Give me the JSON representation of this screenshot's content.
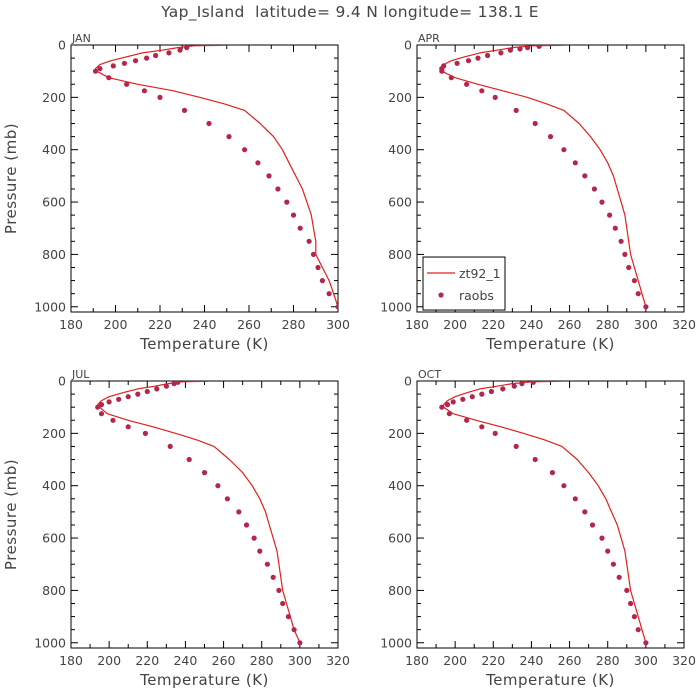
{
  "figure": {
    "title": "Yap_Island  latitude= 9.4 N longitude= 138.1 E"
  },
  "colors": {
    "model_line": "#e0201f",
    "obs_marker": "#b5264e",
    "axis": "#000000",
    "text": "#444444"
  },
  "chart_data": [
    {
      "type": "line",
      "panel_label": "JAN",
      "xlabel": "Temperature (K)",
      "ylabel": "Pressure (mb)",
      "xlim": [
        180,
        300
      ],
      "ylim": [
        1020,
        0
      ],
      "xticks": [
        180,
        200,
        220,
        240,
        260,
        280,
        300
      ],
      "yticks": [
        0,
        200,
        400,
        600,
        800,
        1000
      ],
      "grid": false,
      "series": [
        {
          "name": "zt92_1",
          "style": "line",
          "points": [
            [
              250,
              1
            ],
            [
              235,
              3
            ],
            [
              228,
              10
            ],
            [
              221,
              20
            ],
            [
              212,
              30
            ],
            [
              205,
              45
            ],
            [
              198,
              60
            ],
            [
              193,
              75
            ],
            [
              191,
              90
            ],
            [
              191.5,
              100
            ],
            [
              197,
              125
            ],
            [
              210,
              150
            ],
            [
              226,
              175
            ],
            [
              238,
              200
            ],
            [
              249,
              225
            ],
            [
              258,
              250
            ],
            [
              265,
              300
            ],
            [
              271,
              350
            ],
            [
              275,
              400
            ],
            [
              278,
              450
            ],
            [
              281,
              500
            ],
            [
              284,
              550
            ],
            [
              286,
              600
            ],
            [
              288,
              650
            ],
            [
              289,
              700
            ],
            [
              290,
              750
            ],
            [
              290,
              800
            ],
            [
              293,
              850
            ],
            [
              296,
              900
            ],
            [
              298,
              950
            ],
            [
              300,
              1000
            ]
          ]
        },
        {
          "name": "raobs",
          "style": "markers",
          "points": [
            [
              232,
              10
            ],
            [
              229,
              20
            ],
            [
              224,
              30
            ],
            [
              218,
              40
            ],
            [
              214,
              50
            ],
            [
              209,
              60
            ],
            [
              204,
              70
            ],
            [
              199,
              80
            ],
            [
              193,
              90
            ],
            [
              191,
              100
            ],
            [
              197,
              125
            ],
            [
              205,
              150
            ],
            [
              213,
              175
            ],
            [
              220,
              200
            ],
            [
              231,
              250
            ],
            [
              242,
              300
            ],
            [
              251,
              350
            ],
            [
              258,
              400
            ],
            [
              264,
              450
            ],
            [
              269,
              500
            ],
            [
              273,
              550
            ],
            [
              277,
              600
            ],
            [
              280,
              650
            ],
            [
              283,
              700
            ],
            [
              287,
              750
            ],
            [
              289,
              800
            ],
            [
              291,
              850
            ],
            [
              293,
              900
            ],
            [
              296,
              950
            ],
            [
              300,
              1000
            ]
          ]
        }
      ]
    },
    {
      "type": "line",
      "panel_label": "APR",
      "xlabel": "Temperature (K)",
      "ylabel": "",
      "xlim": [
        180,
        320
      ],
      "ylim": [
        1020,
        0
      ],
      "xticks": [
        180,
        200,
        220,
        240,
        260,
        280,
        300,
        320
      ],
      "yticks": [
        0,
        200,
        400,
        600,
        800,
        1000
      ],
      "grid": false,
      "legend": {
        "placement": "bottom-left",
        "entries": [
          "zt92_1",
          "raobs"
        ]
      },
      "series": [
        {
          "name": "zt92_1",
          "style": "line",
          "points": [
            [
              257,
              1
            ],
            [
              240,
              3
            ],
            [
              230,
              10
            ],
            [
              222,
              20
            ],
            [
              213,
              30
            ],
            [
              205,
              45
            ],
            [
              198,
              60
            ],
            [
              194,
              75
            ],
            [
              192,
              90
            ],
            [
              193,
              100
            ],
            [
              200,
              125
            ],
            [
              212,
              150
            ],
            [
              225,
              175
            ],
            [
              238,
              200
            ],
            [
              248,
              225
            ],
            [
              257,
              250
            ],
            [
              265,
              300
            ],
            [
              271,
              350
            ],
            [
              276,
              400
            ],
            [
              280,
              450
            ],
            [
              283,
              500
            ],
            [
              285,
              550
            ],
            [
              287,
              600
            ],
            [
              289,
              650
            ],
            [
              290,
              700
            ],
            [
              291,
              750
            ],
            [
              292,
              800
            ],
            [
              294,
              850
            ],
            [
              296,
              900
            ],
            [
              298,
              950
            ],
            [
              300,
              1000
            ]
          ]
        },
        {
          "name": "raobs",
          "style": "markers",
          "points": [
            [
              244,
              5
            ],
            [
              238,
              10
            ],
            [
              234,
              15
            ],
            [
              229,
              20
            ],
            [
              224,
              30
            ],
            [
              217,
              40
            ],
            [
              212,
              50
            ],
            [
              207,
              60
            ],
            [
              201,
              70
            ],
            [
              194,
              80
            ],
            [
              193,
              90
            ],
            [
              193,
              100
            ],
            [
              198,
              125
            ],
            [
              206,
              150
            ],
            [
              214,
              175
            ],
            [
              221,
              200
            ],
            [
              232,
              250
            ],
            [
              242,
              300
            ],
            [
              250,
              350
            ],
            [
              257,
              400
            ],
            [
              263,
              450
            ],
            [
              268,
              500
            ],
            [
              273,
              550
            ],
            [
              277,
              600
            ],
            [
              281,
              650
            ],
            [
              284,
              700
            ],
            [
              287,
              750
            ],
            [
              289,
              800
            ],
            [
              291,
              850
            ],
            [
              294,
              900
            ],
            [
              296,
              950
            ],
            [
              300,
              1000
            ]
          ]
        }
      ]
    },
    {
      "type": "line",
      "panel_label": "JUL",
      "xlabel": "Temperature (K)",
      "ylabel": "Pressure (mb)",
      "xlim": [
        180,
        320
      ],
      "ylim": [
        1020,
        0
      ],
      "xticks": [
        180,
        200,
        220,
        240,
        260,
        280,
        300,
        320
      ],
      "yticks": [
        0,
        200,
        400,
        600,
        800,
        1000
      ],
      "grid": false,
      "series": [
        {
          "name": "zt92_1",
          "style": "line",
          "points": [
            [
              252,
              1
            ],
            [
              238,
              3
            ],
            [
              231,
              10
            ],
            [
              224,
              20
            ],
            [
              215,
              30
            ],
            [
              207,
              45
            ],
            [
              200,
              60
            ],
            [
              196,
              75
            ],
            [
              194,
              90
            ],
            [
              195,
              100
            ],
            [
              199,
              125
            ],
            [
              210,
              150
            ],
            [
              223,
              175
            ],
            [
              235,
              200
            ],
            [
              246,
              225
            ],
            [
              255,
              250
            ],
            [
              263,
              300
            ],
            [
              270,
              350
            ],
            [
              275,
              400
            ],
            [
              279,
              450
            ],
            [
              282,
              500
            ],
            [
              284,
              550
            ],
            [
              286,
              600
            ],
            [
              288,
              650
            ],
            [
              289,
              700
            ],
            [
              290,
              750
            ],
            [
              291,
              800
            ],
            [
              293,
              850
            ],
            [
              295,
              900
            ],
            [
              297,
              950
            ],
            [
              300,
              1000
            ]
          ]
        },
        {
          "name": "raobs",
          "style": "markers",
          "points": [
            [
              236,
              5
            ],
            [
              234,
              10
            ],
            [
              230,
              20
            ],
            [
              225,
              30
            ],
            [
              220,
              40
            ],
            [
              215,
              50
            ],
            [
              210,
              60
            ],
            [
              205,
              70
            ],
            [
              200,
              80
            ],
            [
              196,
              90
            ],
            [
              194,
              100
            ],
            [
              196,
              125
            ],
            [
              202,
              150
            ],
            [
              210,
              175
            ],
            [
              219,
              200
            ],
            [
              232,
              250
            ],
            [
              242,
              300
            ],
            [
              250,
              350
            ],
            [
              257,
              400
            ],
            [
              262,
              450
            ],
            [
              268,
              500
            ],
            [
              272,
              550
            ],
            [
              276,
              600
            ],
            [
              279,
              650
            ],
            [
              283,
              700
            ],
            [
              286,
              750
            ],
            [
              289,
              800
            ],
            [
              291,
              850
            ],
            [
              294,
              900
            ],
            [
              297,
              950
            ],
            [
              300,
              1000
            ]
          ]
        }
      ]
    },
    {
      "type": "line",
      "panel_label": "OCT",
      "xlabel": "Temperature (K)",
      "ylabel": "",
      "xlim": [
        180,
        320
      ],
      "ylim": [
        1020,
        0
      ],
      "xticks": [
        180,
        200,
        220,
        240,
        260,
        280,
        300,
        320
      ],
      "yticks": [
        0,
        200,
        400,
        600,
        800,
        1000
      ],
      "grid": false,
      "series": [
        {
          "name": "zt92_1",
          "style": "line",
          "points": [
            [
              256,
              1
            ],
            [
              240,
              3
            ],
            [
              230,
              10
            ],
            [
              222,
              20
            ],
            [
              213,
              30
            ],
            [
              206,
              45
            ],
            [
              200,
              60
            ],
            [
              196,
              75
            ],
            [
              194,
              90
            ],
            [
              194,
              100
            ],
            [
              199,
              125
            ],
            [
              211,
              150
            ],
            [
              224,
              175
            ],
            [
              236,
              200
            ],
            [
              247,
              225
            ],
            [
              256,
              250
            ],
            [
              264,
              300
            ],
            [
              270,
              350
            ],
            [
              275,
              400
            ],
            [
              279,
              450
            ],
            [
              282,
              500
            ],
            [
              285,
              550
            ],
            [
              287,
              600
            ],
            [
              289,
              650
            ],
            [
              290,
              700
            ],
            [
              291,
              750
            ],
            [
              292,
              800
            ],
            [
              294,
              850
            ],
            [
              296,
              900
            ],
            [
              298,
              950
            ],
            [
              300,
              1000
            ]
          ]
        },
        {
          "name": "raobs",
          "style": "markers",
          "points": [
            [
              241,
              5
            ],
            [
              235,
              10
            ],
            [
              231,
              20
            ],
            [
              225,
              30
            ],
            [
              219,
              40
            ],
            [
              214,
              50
            ],
            [
              209,
              60
            ],
            [
              204,
              70
            ],
            [
              199,
              80
            ],
            [
              196,
              90
            ],
            [
              193,
              100
            ],
            [
              197,
              125
            ],
            [
              206,
              150
            ],
            [
              214,
              175
            ],
            [
              221,
              200
            ],
            [
              232,
              250
            ],
            [
              242,
              300
            ],
            [
              251,
              350
            ],
            [
              257,
              400
            ],
            [
              263,
              450
            ],
            [
              268,
              500
            ],
            [
              272,
              550
            ],
            [
              277,
              600
            ],
            [
              280,
              650
            ],
            [
              283,
              700
            ],
            [
              286,
              750
            ],
            [
              290,
              800
            ],
            [
              292,
              850
            ],
            [
              294,
              900
            ],
            [
              296,
              950
            ],
            [
              300,
              1000
            ]
          ]
        }
      ]
    }
  ]
}
